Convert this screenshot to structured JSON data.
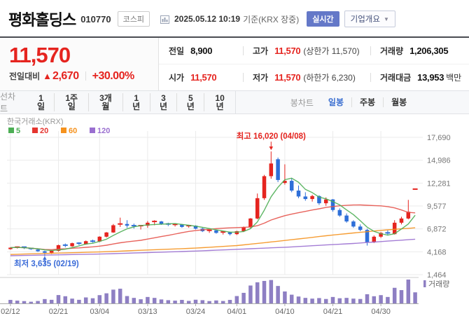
{
  "header": {
    "stock_name": "평화홀딩스",
    "stock_code": "010770",
    "market_badge": "코스피",
    "timestamp": "2025.05.12 10:19",
    "basis": "기준(KRX 장중)",
    "realtime_badge_label": "실시간",
    "company_overview_label": "기업개요"
  },
  "price_summary": {
    "current_price": "11,570",
    "change_label": "전일대비",
    "change_arrow": "▲",
    "change_value": "2,670",
    "change_percent": "+30.00%",
    "stats": {
      "prev_close": {
        "label": "전일",
        "value": "8,900"
      },
      "open": {
        "label": "시가",
        "value": "11,570"
      },
      "high": {
        "label": "고가",
        "value": "11,570",
        "sub": "(상한가 11,570)"
      },
      "low": {
        "label": "저가",
        "value": "11,570",
        "sub": "(하한가 6,230)"
      },
      "volume": {
        "label": "거래량",
        "value": "1,206,305"
      },
      "trade_value": {
        "label": "거래대금",
        "value": "13,953",
        "unit": "백만"
      }
    }
  },
  "toolbar": {
    "line_chart_label": "선차트",
    "line_periods": [
      "1일",
      "1주일",
      "3개월",
      "1년",
      "3년",
      "5년",
      "10년"
    ],
    "candle_chart_label": "봉차트",
    "candle_periods": [
      "일봉",
      "주봉",
      "월봉"
    ],
    "selected_candle_period": "일봉"
  },
  "chart_data": {
    "type": "candlestick",
    "source_label": "한국거래소(KRX)",
    "ma_legend": [
      {
        "label": "5",
        "color": "#4cae54"
      },
      {
        "label": "20",
        "color": "#e5352f"
      },
      {
        "label": "60",
        "color": "#f5921e"
      },
      {
        "label": "120",
        "color": "#9a6fd0"
      }
    ],
    "y_ticks": [
      17690,
      14986,
      12281,
      9577,
      6872,
      4168,
      1464
    ],
    "x_ticks": [
      {
        "i": 0,
        "label": "02/12"
      },
      {
        "i": 7,
        "label": "02/21"
      },
      {
        "i": 13,
        "label": "03/04"
      },
      {
        "i": 20,
        "label": "03/13"
      },
      {
        "i": 27,
        "label": "03/24"
      },
      {
        "i": 33,
        "label": "04/01"
      },
      {
        "i": 40,
        "label": "04/10"
      },
      {
        "i": 47,
        "label": "04/21"
      },
      {
        "i": 54,
        "label": "04/30"
      }
    ],
    "dates": [
      "02/12",
      "02/13",
      "02/14",
      "02/17",
      "02/18",
      "02/19",
      "02/20",
      "02/21",
      "02/24",
      "02/25",
      "02/26",
      "02/27",
      "02/28",
      "03/04",
      "03/05",
      "03/06",
      "03/07",
      "03/10",
      "03/11",
      "03/12",
      "03/13",
      "03/14",
      "03/17",
      "03/18",
      "03/19",
      "03/20",
      "03/21",
      "03/24",
      "03/25",
      "03/26",
      "03/27",
      "03/28",
      "03/31",
      "04/01",
      "04/02",
      "04/03",
      "04/04",
      "04/07",
      "04/08",
      "04/09",
      "04/10",
      "04/11",
      "04/14",
      "04/15",
      "04/16",
      "04/17",
      "04/18",
      "04/21",
      "04/22",
      "04/23",
      "04/24",
      "04/25",
      "04/28",
      "04/29",
      "04/30",
      "05/02",
      "05/07",
      "05/08",
      "05/09",
      "05/12"
    ],
    "open": [
      4480,
      4650,
      4720,
      4560,
      4430,
      4230,
      4050,
      4280,
      4950,
      4820,
      5180,
      5050,
      5420,
      5380,
      5950,
      6450,
      7300,
      7450,
      7250,
      7100,
      7250,
      7600,
      7750,
      7450,
      7300,
      7400,
      7100,
      7250,
      6900,
      6600,
      6700,
      6400,
      6500,
      6250,
      6600,
      7050,
      8100,
      10500,
      13100,
      15100,
      12300,
      12550,
      11400,
      10700,
      10400,
      10750,
      9900,
      10350,
      9100,
      8450,
      7750,
      7150,
      6750,
      5300,
      5950,
      6400,
      6250,
      7600,
      8100,
      11570
    ],
    "high": [
      4700,
      4800,
      4780,
      4640,
      4500,
      4300,
      4350,
      5000,
      5150,
      5250,
      5300,
      5500,
      5600,
      6000,
      6500,
      7450,
      8200,
      7900,
      7500,
      7300,
      7800,
      7900,
      7800,
      7600,
      7500,
      7450,
      7350,
      7300,
      7000,
      6800,
      6750,
      6600,
      6550,
      6650,
      7150,
      8150,
      11050,
      13250,
      16020,
      15300,
      14500,
      12900,
      12000,
      11200,
      10900,
      10850,
      10600,
      10400,
      9300,
      8700,
      7900,
      7400,
      6900,
      6100,
      6500,
      6700,
      7900,
      8300,
      10300,
      11570
    ],
    "low": [
      4420,
      4550,
      4500,
      4380,
      4150,
      3635,
      3900,
      4200,
      4700,
      4750,
      4950,
      5000,
      5250,
      5300,
      5850,
      6400,
      7100,
      7000,
      6900,
      6800,
      7000,
      7300,
      7350,
      7200,
      7150,
      7000,
      7000,
      6800,
      6500,
      6400,
      6300,
      6200,
      6100,
      6150,
      6500,
      6950,
      8000,
      10300,
      12800,
      12400,
      12100,
      11200,
      10500,
      10200,
      10100,
      9700,
      9600,
      8900,
      8300,
      7600,
      7000,
      6600,
      4900,
      5200,
      5800,
      6100,
      6200,
      7400,
      8000,
      11570
    ],
    "close": [
      4650,
      4720,
      4560,
      4430,
      4230,
      4050,
      4280,
      4950,
      4820,
      5180,
      5050,
      5420,
      5380,
      5950,
      6450,
      7300,
      7450,
      7250,
      7100,
      7250,
      7600,
      7750,
      7450,
      7300,
      7400,
      7100,
      7250,
      6900,
      6600,
      6700,
      6400,
      6500,
      6250,
      6600,
      7050,
      8100,
      10500,
      13100,
      14600,
      12650,
      12550,
      11400,
      10700,
      10400,
      10750,
      9900,
      10350,
      9100,
      8450,
      7750,
      7150,
      6750,
      5300,
      5950,
      6400,
      6250,
      7600,
      8100,
      8900,
      11570
    ],
    "volume_k": [
      380,
      300,
      250,
      180,
      260,
      470,
      390,
      910,
      780,
      520,
      390,
      650,
      560,
      900,
      1100,
      1500,
      1600,
      800,
      600,
      450,
      700,
      600,
      430,
      350,
      300,
      380,
      270,
      400,
      350,
      250,
      320,
      260,
      380,
      800,
      1150,
      1950,
      2300,
      2450,
      2550,
      1900,
      1300,
      950,
      750,
      600,
      520,
      580,
      480,
      700,
      560,
      600,
      520,
      480,
      1000,
      780,
      900,
      700,
      1700,
      1450,
      2600,
      1206
    ],
    "ma60_points": [
      [
        0,
        3850
      ],
      [
        13,
        4150
      ],
      [
        27,
        4600
      ],
      [
        33,
        4900
      ],
      [
        40,
        5500
      ],
      [
        47,
        6150
      ],
      [
        54,
        6700
      ],
      [
        59,
        7000
      ]
    ],
    "ma120_points": [
      [
        0,
        3700
      ],
      [
        13,
        3900
      ],
      [
        27,
        4250
      ],
      [
        40,
        4700
      ],
      [
        50,
        5150
      ],
      [
        59,
        5650
      ]
    ],
    "annotations": {
      "max": {
        "text": "최고 16,020 (04/08)",
        "value": 16020,
        "index": 38
      },
      "min": {
        "text": "최저 3,635 (02/19)",
        "value": 3635,
        "index": 5
      }
    },
    "volume_legend_label": "거래량",
    "colors": {
      "up": "#e5241f",
      "down": "#2e6fd8",
      "ma5": "#4cae54",
      "ma20": "#e5524a",
      "ma60": "#f5921e",
      "ma120": "#9a6fd0",
      "volume": "#8e7fc3",
      "grid": "#ebebeb",
      "axis": "#aaaaaa",
      "label": "#777777"
    }
  }
}
